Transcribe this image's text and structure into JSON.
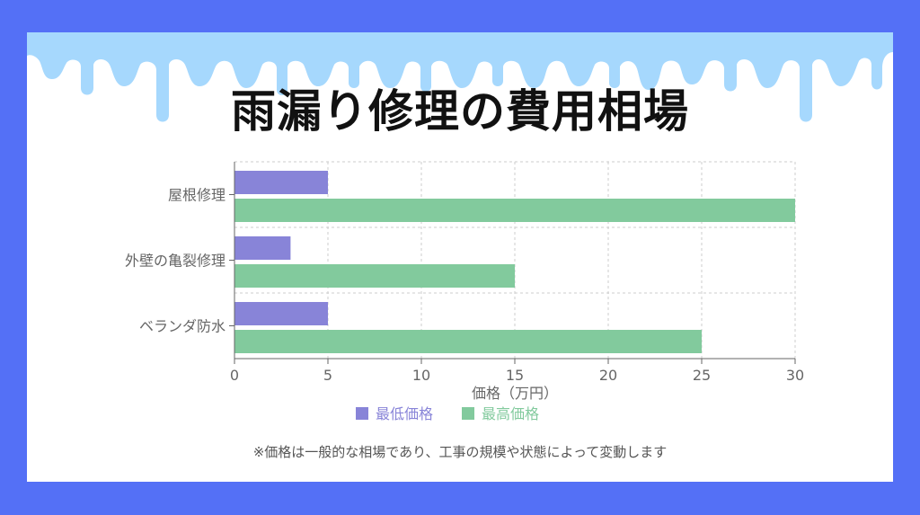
{
  "title": "雨漏り修理の費用相場",
  "note": "※価格は一般的な相場であり、工事の規模や状態によって変動します",
  "colors": {
    "background": "#5470f6",
    "drip": "#a6d8fd",
    "min_series": "#8884d8",
    "max_series": "#82ca9d"
  },
  "chart_data": {
    "type": "bar",
    "orientation": "horizontal",
    "categories": [
      "屋根修理",
      "外壁の亀裂修理",
      "ベランダ防水"
    ],
    "series": [
      {
        "name": "最低価格",
        "values": [
          5,
          3,
          5
        ],
        "color": "#8884d8"
      },
      {
        "name": "最高価格",
        "values": [
          30,
          15,
          25
        ],
        "color": "#82ca9d"
      }
    ],
    "xlabel": "価格（万円）",
    "xlim": [
      0,
      30
    ],
    "xticks": [
      0,
      5,
      10,
      15,
      20,
      25,
      30
    ],
    "grid": true,
    "legend": "bottom"
  }
}
